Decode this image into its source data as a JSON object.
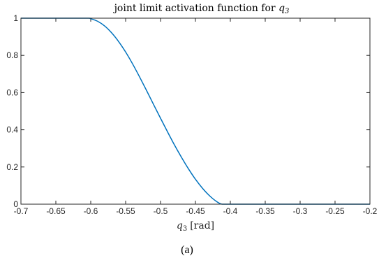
{
  "chart_data": {
    "type": "line",
    "title": "joint limit activation function for q3",
    "title_parts": {
      "prefix": "joint limit activation function for ",
      "var": "q",
      "sub": "3"
    },
    "xlabel": "q3 [rad]",
    "xlabel_parts": {
      "var": "q",
      "sub": "3",
      "unit": "[rad]"
    },
    "ylabel": "",
    "xlim": [
      -0.7,
      -0.2
    ],
    "ylim": [
      0,
      1
    ],
    "xticks": [
      -0.7,
      -0.65,
      -0.6,
      -0.55,
      -0.5,
      -0.45,
      -0.4,
      -0.35,
      -0.3,
      -0.25,
      -0.2
    ],
    "xtick_labels": [
      "-0.7",
      "-0.65",
      "-0.6",
      "-0.55",
      "-0.5",
      "-0.45",
      "-0.4",
      "-0.35",
      "-0.3",
      "-0.25",
      "-0.2"
    ],
    "yticks": [
      0,
      0.2,
      0.4,
      0.6,
      0.8,
      1
    ],
    "ytick_labels": [
      "0",
      "0.2",
      "0.4",
      "0.6",
      "0.8",
      "1"
    ],
    "grid": false,
    "series": [
      {
        "color": "#0072BD",
        "x": [
          -0.7,
          -0.65,
          -0.605,
          -0.6,
          -0.59,
          -0.58,
          -0.57,
          -0.56,
          -0.55,
          -0.54,
          -0.53,
          -0.52,
          -0.51,
          -0.5,
          -0.49,
          -0.48,
          -0.47,
          -0.46,
          -0.45,
          -0.44,
          -0.43,
          -0.42,
          -0.412,
          -0.4,
          -0.3,
          -0.2
        ],
        "y": [
          1,
          1,
          1,
          0.997,
          0.983,
          0.958,
          0.921,
          0.874,
          0.818,
          0.754,
          0.684,
          0.611,
          0.536,
          0.462,
          0.389,
          0.318,
          0.252,
          0.19,
          0.134,
          0.086,
          0.046,
          0.015,
          0,
          0,
          0,
          0
        ]
      }
    ]
  },
  "caption": "(a)"
}
